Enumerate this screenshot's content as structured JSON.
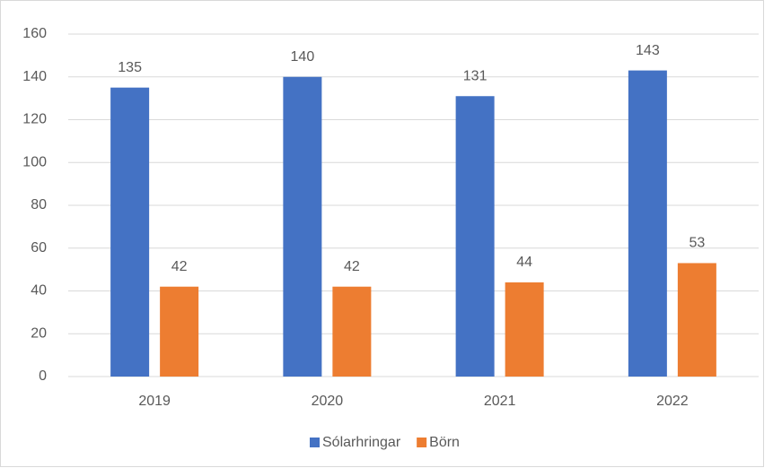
{
  "chart_data": {
    "type": "bar",
    "categories": [
      "2019",
      "2020",
      "2021",
      "2022"
    ],
    "series": [
      {
        "name": "Sólarhringar",
        "color": "#4472c4",
        "values": [
          135,
          140,
          131,
          143
        ]
      },
      {
        "name": "Börn",
        "color": "#ed7d31",
        "values": [
          42,
          42,
          44,
          53
        ]
      }
    ],
    "ylim": [
      0,
      160
    ],
    "yticks": [
      0,
      20,
      40,
      60,
      80,
      100,
      120,
      140,
      160
    ],
    "grid": true,
    "legend": "bottom",
    "data_labels": true
  }
}
